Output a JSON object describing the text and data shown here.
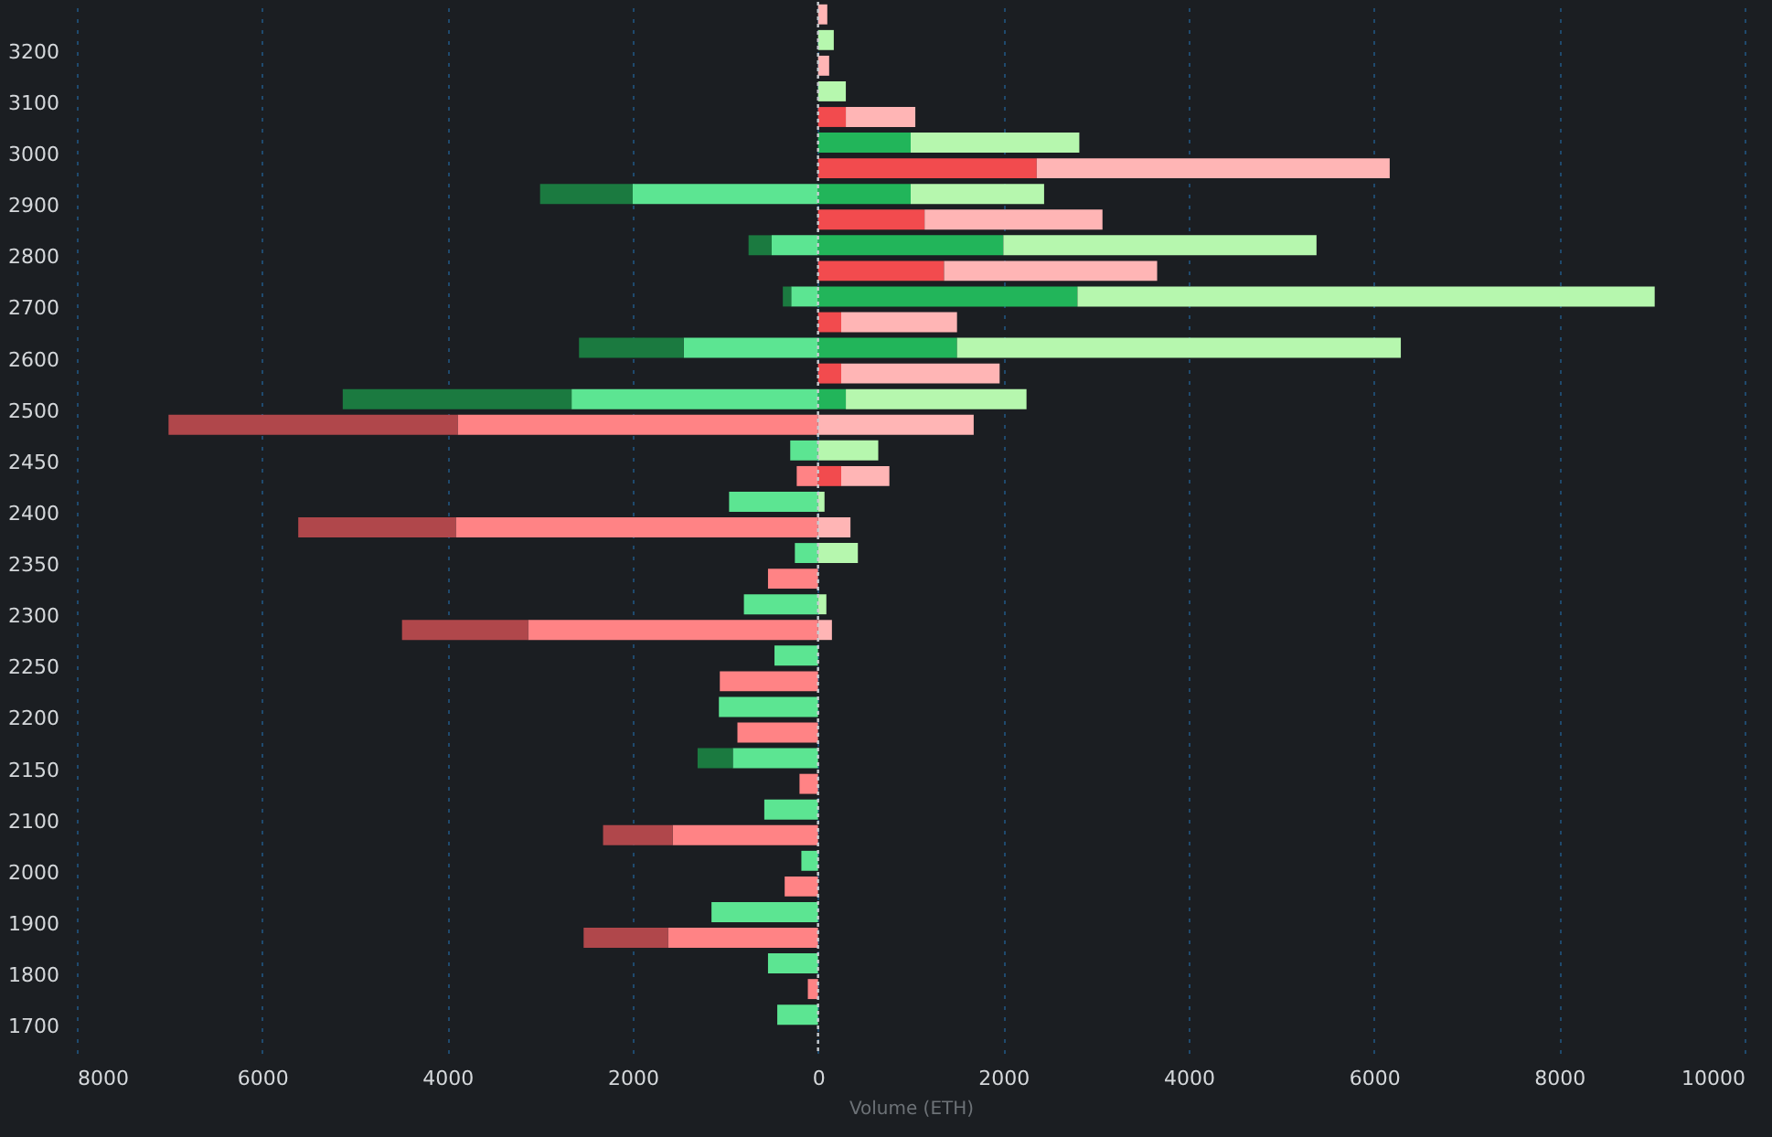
{
  "chart_data": {
    "type": "bar",
    "orientation": "horizontal",
    "stacked": true,
    "xlabel": "Volume (ETH)",
    "categories": [
      null,
      "3200",
      null,
      "3100",
      null,
      "3000",
      null,
      "2900",
      null,
      "2800",
      null,
      "2700",
      null,
      "2600",
      null,
      "2500",
      null,
      "2450",
      null,
      "2400",
      null,
      "2350",
      null,
      "2300",
      null,
      "2250",
      null,
      "2200",
      null,
      "2150",
      null,
      "2100",
      null,
      "2000",
      null,
      "1900",
      null,
      "1800",
      null,
      "1700",
      null
    ],
    "xlim": [
      -8000,
      10000
    ],
    "xticks": [
      {
        "value": -8000,
        "label": "8000"
      },
      {
        "value": -6000,
        "label": "6000"
      },
      {
        "value": -4000,
        "label": "4000"
      },
      {
        "value": -2000,
        "label": "2000"
      },
      0,
      2000,
      4000,
      6000,
      8000,
      10000
    ],
    "grid": "x",
    "legend": false,
    "ref_lines": [
      {
        "axis": "x",
        "value": 0,
        "color": "#c8ccd0",
        "line_style": "dotted"
      }
    ],
    "series": [
      {
        "color": "#5ce592",
        "values": [
          null,
          null,
          null,
          null,
          null,
          null,
          null,
          -2000,
          null,
          -500,
          null,
          -290,
          null,
          -1450,
          null,
          -2660,
          null,
          -300,
          null,
          -960,
          null,
          -250,
          null,
          -800,
          null,
          -470,
          null,
          -1070,
          null,
          -920,
          null,
          -580,
          null,
          -180,
          null,
          -1150,
          null,
          -540,
          null,
          -440,
          null
        ]
      },
      {
        "color": "#1b7a40",
        "values": [
          null,
          null,
          null,
          null,
          null,
          null,
          null,
          -1000,
          null,
          -250,
          null,
          -90,
          null,
          -1130,
          null,
          -2470,
          null,
          null,
          null,
          null,
          null,
          null,
          null,
          null,
          null,
          null,
          null,
          null,
          null,
          -380,
          null,
          null,
          null,
          null,
          null,
          null,
          null,
          null,
          null,
          null,
          null
        ]
      },
      {
        "color": "#22b55a",
        "values": [
          null,
          null,
          null,
          null,
          null,
          1000,
          null,
          1000,
          null,
          2000,
          null,
          2800,
          null,
          1500,
          null,
          300,
          null,
          null,
          null,
          null,
          null,
          null,
          null,
          null,
          null,
          null,
          null,
          null,
          null,
          null,
          null,
          null,
          null,
          null,
          null,
          null,
          null,
          null,
          null,
          null,
          null
        ]
      },
      {
        "color": "#b6f7ae",
        "values": [
          null,
          170,
          null,
          300,
          null,
          1820,
          null,
          1440,
          null,
          3380,
          null,
          6230,
          null,
          4790,
          null,
          1950,
          null,
          650,
          null,
          70,
          null,
          430,
          null,
          90,
          null,
          null,
          null,
          null,
          null,
          null,
          null,
          null,
          null,
          null,
          null,
          null,
          null,
          null,
          null,
          null,
          null
        ]
      },
      {
        "color": "#ff8385",
        "values": [
          null,
          null,
          null,
          null,
          null,
          null,
          null,
          null,
          null,
          null,
          null,
          null,
          null,
          null,
          null,
          null,
          -3890,
          null,
          -230,
          null,
          -3910,
          null,
          -540,
          null,
          -3130,
          null,
          -1060,
          null,
          -870,
          null,
          -200,
          null,
          -1570,
          null,
          -360,
          null,
          -1620,
          null,
          -110,
          null,
          null
        ]
      },
      {
        "color": "#b0474b",
        "values": [
          null,
          null,
          null,
          null,
          null,
          null,
          null,
          null,
          null,
          null,
          null,
          null,
          null,
          null,
          null,
          null,
          -3120,
          null,
          null,
          null,
          -1700,
          null,
          null,
          null,
          -1360,
          null,
          null,
          null,
          null,
          null,
          null,
          null,
          -750,
          null,
          null,
          null,
          -910,
          null,
          null,
          null,
          null
        ]
      },
      {
        "color": "#f24b4e",
        "values": [
          null,
          null,
          null,
          null,
          300,
          null,
          2360,
          null,
          1150,
          null,
          1360,
          null,
          250,
          null,
          250,
          null,
          null,
          null,
          250,
          null,
          null,
          null,
          null,
          null,
          null,
          null,
          null,
          null,
          null,
          null,
          null,
          null,
          null,
          null,
          null,
          null,
          null,
          null,
          null,
          null,
          null
        ]
      },
      {
        "color": "#ffb5b5",
        "values": [
          100,
          null,
          120,
          null,
          750,
          null,
          3810,
          null,
          1920,
          null,
          2300,
          null,
          1250,
          null,
          1710,
          null,
          1680,
          null,
          520,
          null,
          350,
          null,
          null,
          null,
          150,
          null,
          null,
          null,
          null,
          null,
          null,
          null,
          null,
          null,
          null,
          null,
          null,
          null,
          null,
          null,
          null
        ]
      }
    ]
  }
}
